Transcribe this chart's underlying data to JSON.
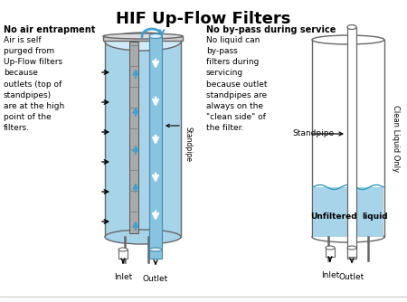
{
  "title": "HIF Up-Flow Filters",
  "title_fontsize": 13,
  "title_fontweight": "bold",
  "background_color": "#ffffff",
  "diagram_blue": "#a8d4ea",
  "diagram_blue_light": "#d0eaf8",
  "standpipe_blue": "#88c4e0",
  "arrow_blue": "#40a0d0",
  "text_color": "#000000",
  "left_text_bold": "No air entrapment",
  "left_text_body": "Air is self\npurged from\nUp-Flow filters\nbecause\noutlets (top of\nstandpipes)\nare at the high\npoint of the\nfilters.",
  "right_text_bold": "No by-pass during service",
  "right_text_body": "No liquid can\nby-pass\nfilters during\nservicing\nbecause outlet\nstandpipes are\nalways on the\n\"clean side\" of\nthe filter.",
  "label_inlet_left": "Inlet",
  "label_outlet_left": "Outlet",
  "label_standpipe_left": "Standpipe",
  "label_standpipe_right": "Standpipe",
  "label_inlet_right": "Inlet",
  "label_outlet_right": "Outlet",
  "label_unfiltered": "Unfiltered",
  "label_clean": "Clean Liquid Only",
  "label_liquid": "liquid"
}
